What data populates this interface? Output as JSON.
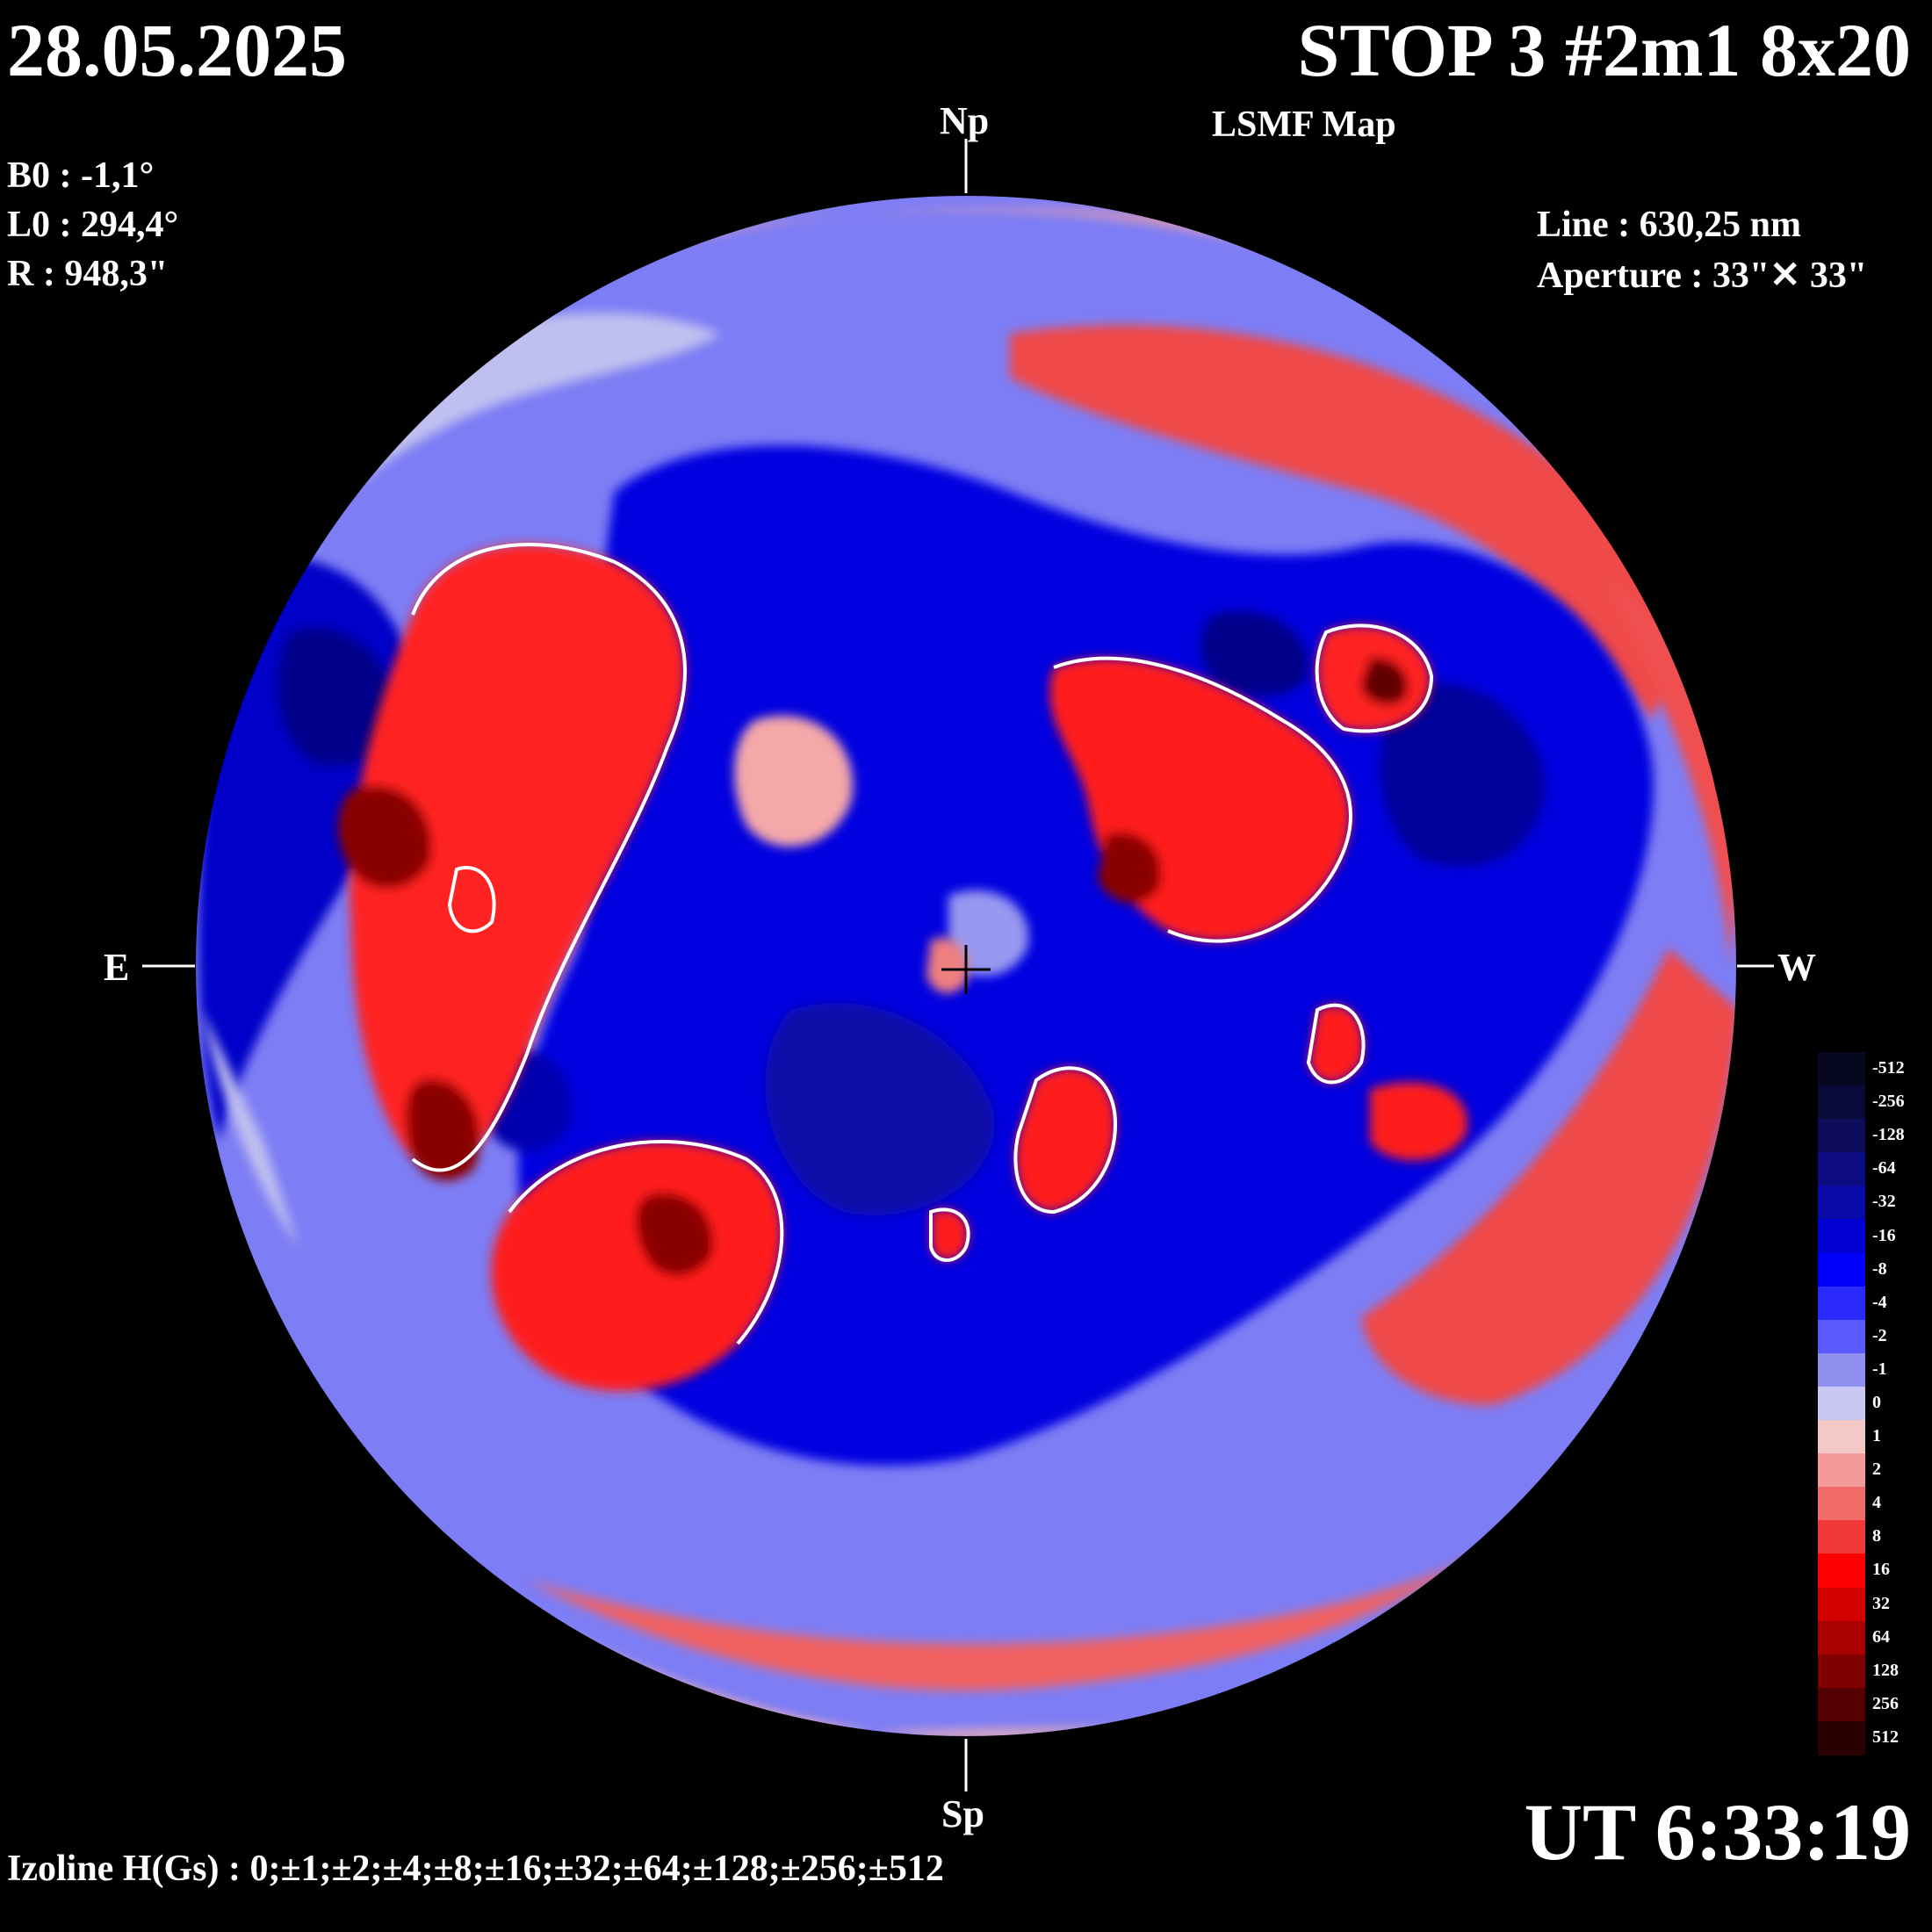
{
  "header": {
    "date": "28.05.2025",
    "title": "STOP 3 #2m1 8x20",
    "subtitle": "LSMF  Map"
  },
  "params": {
    "b0": "B0 : -1,1°",
    "l0": "L0 : 294,4°",
    "r": "R  : 948,3\""
  },
  "instrument": {
    "line": "Line :  630,25 nm",
    "aperture": "Aperture : 33\"✕ 33\""
  },
  "compass": {
    "north": "Np",
    "south": "Sp",
    "east": "E",
    "west": "W"
  },
  "time": "UT 6:33:19",
  "izoline": "Izoline H(Gs) : 0;±1;±2;±4;±8;±16;±32;±64;±128;±256;±512",
  "colorbar": {
    "labels": [
      "-512",
      "-256",
      "-128",
      "-64",
      "-32",
      "-16",
      "-8",
      "-4",
      "-2",
      "-1",
      "0",
      "1",
      "2",
      "4",
      "8",
      "16",
      "32",
      "64",
      "128",
      "256",
      "512"
    ],
    "colors": [
      "#07071f",
      "#0b0b3a",
      "#0d0d5c",
      "#0c0c80",
      "#0a0aa8",
      "#0000d4",
      "#0000ff",
      "#2a2aff",
      "#5a5aff",
      "#9090f0",
      "#c8c8f2",
      "#f5c8c8",
      "#f59a9a",
      "#f26a6a",
      "#f03a3a",
      "#ff0000",
      "#d40000",
      "#aa0000",
      "#800000",
      "#550000",
      "#2a0000"
    ]
  },
  "map_colors": {
    "disk_base": "#7d7df5",
    "negative_strong": "#0000e0",
    "negative_deep": "#00008a",
    "positive_mid": "#f04848",
    "positive_strong": "#ff1010",
    "positive_deep": "#8a0000",
    "neutral_pos": "#f5c0c0",
    "neutral_neg": "#c0c0f0",
    "contour": "#ffffff"
  }
}
